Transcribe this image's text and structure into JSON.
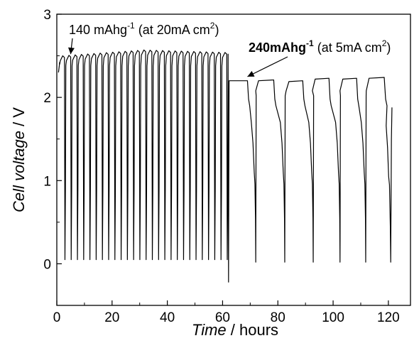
{
  "chart_data": {
    "type": "line",
    "xlabel_italic": "Time",
    "xlabel_unit": " / hours",
    "ylabel_italic": "Cell voltage",
    "ylabel_unit": " / V",
    "xlim": [
      0,
      128
    ],
    "ylim": [
      -0.5,
      3.0
    ],
    "xticks": [
      0,
      20,
      40,
      60,
      80,
      100,
      120
    ],
    "yticks": [
      0,
      1,
      2,
      3
    ],
    "grid": false,
    "phase1": {
      "description_rate": "20 mA cm-2",
      "start_hour": 1.0,
      "end_hour": 62.0,
      "cycle_count": 27,
      "upper_voltage_start": 2.48,
      "upper_voltage_mid": 2.55,
      "upper_voltage_end": 2.52,
      "lower_voltage": 0.05
    },
    "phase2": {
      "description_rate": "5 mA cm-2",
      "plateau_start_hour": 62.0,
      "plateau_end_hour": 69.0,
      "plateau_voltage": 2.2,
      "cycles": [
        {
          "peak_start": 73.0,
          "peak_end": 78.5,
          "peak_v": 2.2,
          "bottom_hour": 72.0,
          "bottom_v": 0.02
        },
        {
          "peak_start": 84.0,
          "peak_end": 89.0,
          "peak_v": 2.19,
          "bottom_hour": 82.5,
          "bottom_v": 0.02
        },
        {
          "peak_start": 93.5,
          "peak_end": 98.5,
          "peak_v": 2.22,
          "bottom_hour": 92.8,
          "bottom_v": 0.02
        },
        {
          "peak_start": 103.5,
          "peak_end": 108.5,
          "peak_v": 2.22,
          "bottom_hour": 102.5,
          "bottom_v": 0.02
        },
        {
          "peak_start": 113.0,
          "peak_end": 118.5,
          "peak_v": 2.23,
          "bottom_hour": 111.8,
          "bottom_v": 0.02
        }
      ],
      "final_hour": 121.3,
      "final_v": 1.88
    },
    "annotations": [
      {
        "text_main": "140 mAhg",
        "text_sup": "-1",
        "text_rest": " (at 20mA cm",
        "text_sup2": "2",
        "text_end": ")",
        "bold_main": false,
        "arrow_to": [
          5,
          2.52
        ]
      },
      {
        "text_main": "240mAhg",
        "text_sup": "-1",
        "text_rest": " (at 5mA cm",
        "text_sup2": "2",
        "text_end": ")",
        "bold_main": true,
        "arrow_to": [
          69,
          2.25
        ]
      }
    ]
  }
}
